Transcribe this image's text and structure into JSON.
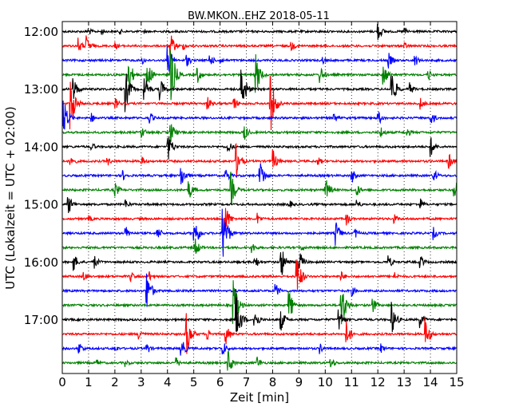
{
  "chart_data": {
    "type": "line",
    "title": "BW.MKON..EHZ 2018-05-11",
    "xlabel": "Zeit  [min]",
    "ylabel": "UTC (Lokalzeit = UTC + 02:00)",
    "xlim": [
      0,
      15
    ],
    "x_ticks": [
      "0",
      "1",
      "2",
      "3",
      "4",
      "5",
      "6",
      "7",
      "8",
      "9",
      "10",
      "11",
      "12",
      "13",
      "14",
      "15"
    ],
    "y_ticks": [
      "12:00",
      "13:00",
      "14:00",
      "15:00",
      "16:00",
      "17:00"
    ],
    "row_minutes": 15,
    "grid": "dotted-vertical",
    "trace_colors": [
      "#000000",
      "#ff0000",
      "#0000ff",
      "#008000"
    ],
    "rows": [
      {
        "time": "12:00",
        "color": "#000000",
        "events": [
          [
            1.0,
            0.3
          ],
          [
            1.5,
            0.25
          ],
          [
            2.2,
            0.2
          ],
          [
            3.1,
            0.2
          ],
          [
            12.0,
            0.7
          ],
          [
            13.0,
            0.4
          ]
        ]
      },
      {
        "time": "12:15",
        "color": "#ff0000",
        "events": [
          [
            0.6,
            0.6
          ],
          [
            0.9,
            0.8
          ],
          [
            2.0,
            0.3
          ],
          [
            4.1,
            1.0
          ],
          [
            4.6,
            0.3
          ],
          [
            8.7,
            0.4
          ],
          [
            13.0,
            0.3
          ]
        ]
      },
      {
        "time": "12:30",
        "color": "#0000ff",
        "events": [
          [
            3.0,
            0.4
          ],
          [
            4.0,
            1.2
          ],
          [
            4.7,
            0.6
          ],
          [
            5.6,
            0.5
          ],
          [
            6.0,
            0.3
          ],
          [
            9.9,
            0.3
          ],
          [
            12.4,
            0.6
          ],
          [
            13.4,
            0.5
          ]
        ]
      },
      {
        "time": "12:45",
        "color": "#008000",
        "events": [
          [
            2.5,
            1.4
          ],
          [
            3.2,
            1.3
          ],
          [
            4.1,
            2.6
          ],
          [
            5.1,
            0.8
          ],
          [
            7.3,
            2.2
          ],
          [
            9.8,
            0.7
          ],
          [
            12.2,
            0.9
          ],
          [
            13.9,
            0.5
          ]
        ]
      },
      {
        "time": "13:00",
        "color": "#000000",
        "events": [
          [
            0.4,
            1.0
          ],
          [
            2.4,
            1.6
          ],
          [
            3.1,
            1.2
          ],
          [
            3.7,
            1.0
          ],
          [
            6.8,
            2.0
          ],
          [
            12.5,
            1.6
          ],
          [
            13.2,
            0.5
          ]
        ]
      },
      {
        "time": "13:15",
        "color": "#ff0000",
        "events": [
          [
            0.3,
            2.0
          ],
          [
            2.0,
            0.5
          ],
          [
            5.5,
            0.6
          ],
          [
            6.5,
            0.6
          ],
          [
            7.9,
            2.4
          ],
          [
            13.6,
            0.5
          ]
        ]
      },
      {
        "time": "13:30",
        "color": "#0000ff",
        "events": [
          [
            0.0,
            2.0
          ],
          [
            1.1,
            0.4
          ],
          [
            3.3,
            0.5
          ],
          [
            10.3,
            0.5
          ],
          [
            12.0,
            0.6
          ],
          [
            14.0,
            0.6
          ]
        ]
      },
      {
        "time": "13:45",
        "color": "#008000",
        "events": [
          [
            3.0,
            0.5
          ],
          [
            4.1,
            0.9
          ],
          [
            6.9,
            0.7
          ],
          [
            12.1,
            0.5
          ],
          [
            13.1,
            0.4
          ]
        ]
      },
      {
        "time": "14:00",
        "color": "#000000",
        "events": [
          [
            1.1,
            0.4
          ],
          [
            4.0,
            1.2
          ],
          [
            6.3,
            0.5
          ],
          [
            14.0,
            0.8
          ]
        ]
      },
      {
        "time": "14:15",
        "color": "#ff0000",
        "events": [
          [
            0.3,
            0.6
          ],
          [
            1.7,
            0.4
          ],
          [
            3.0,
            0.4
          ],
          [
            6.6,
            1.4
          ],
          [
            8.0,
            0.9
          ],
          [
            9.7,
            0.4
          ],
          [
            14.7,
            0.6
          ]
        ]
      },
      {
        "time": "14:30",
        "color": "#0000ff",
        "events": [
          [
            2.3,
            0.4
          ],
          [
            4.5,
            1.0
          ],
          [
            6.2,
            0.6
          ],
          [
            7.5,
            1.4
          ],
          [
            11.0,
            0.6
          ],
          [
            14.1,
            0.6
          ]
        ]
      },
      {
        "time": "14:45",
        "color": "#008000",
        "events": [
          [
            2.0,
            0.6
          ],
          [
            4.8,
            0.8
          ],
          [
            6.4,
            1.4
          ],
          [
            10.0,
            1.0
          ],
          [
            11.2,
            0.5
          ],
          [
            14.9,
            1.0
          ]
        ]
      },
      {
        "time": "15:00",
        "color": "#000000",
        "events": [
          [
            0.2,
            0.9
          ],
          [
            2.4,
            0.4
          ],
          [
            8.6,
            0.4
          ],
          [
            11.2,
            0.4
          ],
          [
            13.6,
            0.5
          ]
        ]
      },
      {
        "time": "15:15",
        "color": "#ff0000",
        "events": [
          [
            1.0,
            0.3
          ],
          [
            6.2,
            1.1
          ],
          [
            7.4,
            0.5
          ],
          [
            10.8,
            0.5
          ],
          [
            12.6,
            0.4
          ]
        ]
      },
      {
        "time": "15:30",
        "color": "#0000ff",
        "events": [
          [
            2.4,
            0.6
          ],
          [
            3.6,
            0.6
          ],
          [
            5.0,
            1.4
          ],
          [
            6.1,
            2.4
          ],
          [
            10.4,
            0.9
          ],
          [
            11.1,
            0.5
          ],
          [
            14.1,
            0.5
          ]
        ]
      },
      {
        "time": "15:45",
        "color": "#008000",
        "events": [
          [
            5.0,
            1.0
          ],
          [
            7.2,
            0.5
          ],
          [
            9.1,
            0.3
          ]
        ]
      },
      {
        "time": "16:00",
        "color": "#000000",
        "events": [
          [
            0.4,
            0.8
          ],
          [
            1.2,
            0.6
          ],
          [
            7.3,
            0.6
          ],
          [
            8.3,
            1.4
          ],
          [
            9.0,
            0.9
          ],
          [
            12.4,
            0.5
          ],
          [
            13.6,
            0.6
          ]
        ]
      },
      {
        "time": "16:15",
        "color": "#ff0000",
        "events": [
          [
            0.8,
            0.4
          ],
          [
            2.6,
            0.4
          ],
          [
            3.3,
            0.4
          ],
          [
            8.9,
            1.8
          ],
          [
            10.6,
            0.4
          ],
          [
            12.6,
            0.4
          ]
        ]
      },
      {
        "time": "16:30",
        "color": "#0000ff",
        "events": [
          [
            3.2,
            1.6
          ],
          [
            8.1,
            0.6
          ],
          [
            11.0,
            0.4
          ]
        ]
      },
      {
        "time": "16:45",
        "color": "#008000",
        "events": [
          [
            6.5,
            2.0
          ],
          [
            8.6,
            1.4
          ],
          [
            10.6,
            2.0
          ],
          [
            11.8,
            0.6
          ]
        ]
      },
      {
        "time": "17:00",
        "color": "#000000",
        "events": [
          [
            6.6,
            2.2
          ],
          [
            7.3,
            0.9
          ],
          [
            8.3,
            0.9
          ],
          [
            10.5,
            1.0
          ],
          [
            12.5,
            1.4
          ],
          [
            13.6,
            0.6
          ]
        ]
      },
      {
        "time": "17:15",
        "color": "#ff0000",
        "events": [
          [
            2.9,
            0.5
          ],
          [
            4.7,
            1.8
          ],
          [
            5.5,
            0.5
          ],
          [
            6.2,
            0.9
          ],
          [
            10.8,
            1.0
          ],
          [
            13.8,
            1.2
          ]
        ]
      },
      {
        "time": "17:30",
        "color": "#0000ff",
        "events": [
          [
            0.6,
            0.6
          ],
          [
            2.0,
            0.3
          ],
          [
            3.2,
            0.5
          ],
          [
            4.5,
            0.9
          ],
          [
            6.1,
            0.6
          ],
          [
            9.8,
            0.4
          ],
          [
            12.1,
            0.4
          ]
        ]
      },
      {
        "time": "17:45",
        "color": "#008000",
        "events": [
          [
            1.3,
            0.3
          ],
          [
            2.4,
            0.3
          ],
          [
            4.3,
            0.5
          ],
          [
            6.3,
            1.0
          ],
          [
            7.4,
            0.5
          ],
          [
            10.2,
            0.5
          ]
        ]
      }
    ]
  }
}
